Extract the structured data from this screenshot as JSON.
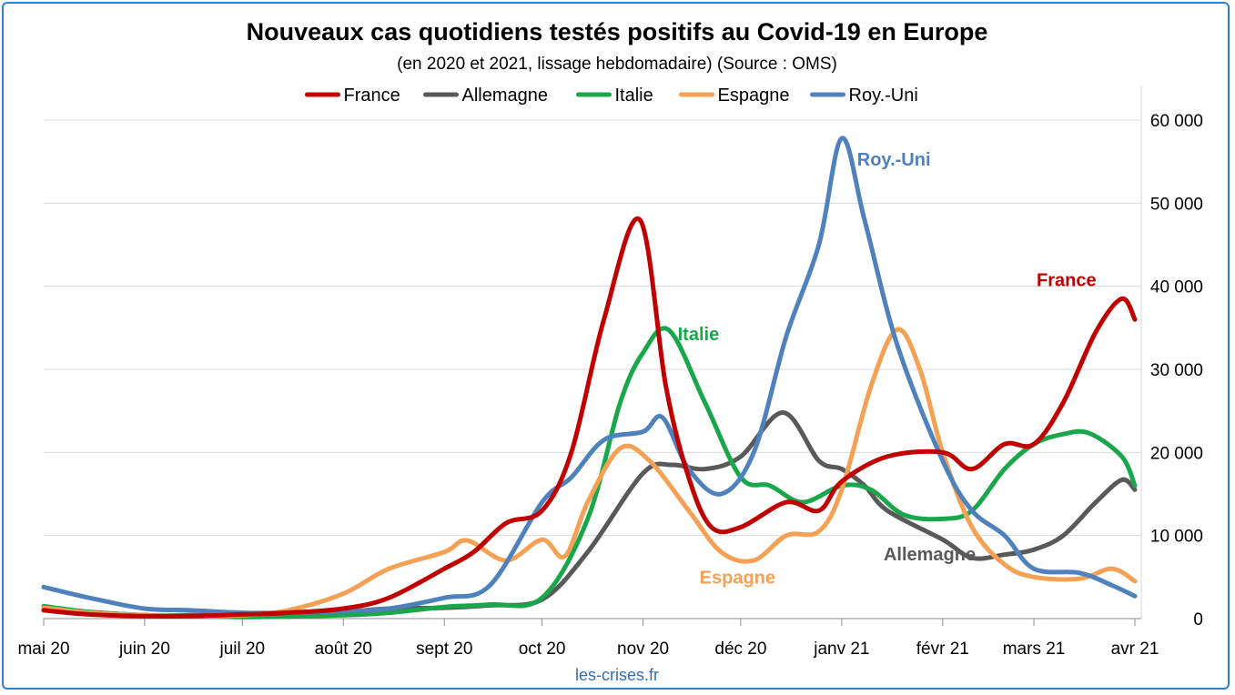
{
  "colors": {
    "France": "#c00000",
    "Allemagne": "#595959",
    "Italie": "#1aa64b",
    "Espagne": "#f4a055",
    "Roy.-Uni": "#4f81bd",
    "grid": "#d9d9d9",
    "frame": "#2f7dd6"
  },
  "source_note": "les-crises.fr",
  "chart_data": {
    "type": "line",
    "title": "Nouveaux cas quotidiens testés positifs au Covid-19 en Europe",
    "subtitle": "(en 2020 et 2021, lissage hebdomadaire) (Source : OMS)",
    "x_tick_labels": [
      "mai 20",
      "juin 20",
      "juil 20",
      "août 20",
      "sept 20",
      "oct 20",
      "nov 20",
      "déc 20",
      "janv 21",
      "févr 21",
      "mars 21",
      "avr 21"
    ],
    "x_tick_dates": [
      "2020-05-01",
      "2020-06-01",
      "2020-07-01",
      "2020-08-01",
      "2020-09-01",
      "2020-10-01",
      "2020-11-01",
      "2020-12-01",
      "2021-01-01",
      "2021-02-01",
      "2021-03-01",
      "2021-04-01"
    ],
    "x_range": [
      "2020-05-01",
      "2021-04-01"
    ],
    "y_tick_labels": [
      "0",
      "10 000",
      "20 000",
      "30 000",
      "40 000",
      "50 000",
      "60 000"
    ],
    "ylim": [
      0,
      60000
    ],
    "y_axis_side": "right",
    "grid": "horizontal",
    "legend_position": "top",
    "legend": [
      "France",
      "Allemagne",
      "Italie",
      "Espagne",
      "Roy.-Uni"
    ],
    "series": [
      {
        "name": "France",
        "points": [
          [
            "2020-05-01",
            1000
          ],
          [
            "2020-05-15",
            500
          ],
          [
            "2020-06-01",
            300
          ],
          [
            "2020-06-15",
            300
          ],
          [
            "2020-07-01",
            500
          ],
          [
            "2020-07-15",
            700
          ],
          [
            "2020-08-01",
            1200
          ],
          [
            "2020-08-15",
            2500
          ],
          [
            "2020-09-01",
            6000
          ],
          [
            "2020-09-10",
            8000
          ],
          [
            "2020-09-20",
            11500
          ],
          [
            "2020-10-01",
            13000
          ],
          [
            "2020-10-10",
            20000
          ],
          [
            "2020-10-20",
            36000
          ],
          [
            "2020-10-31",
            48000
          ],
          [
            "2020-11-08",
            28000
          ],
          [
            "2020-11-15",
            17000
          ],
          [
            "2020-11-22",
            11000
          ],
          [
            "2020-12-01",
            11000
          ],
          [
            "2020-12-15",
            14000
          ],
          [
            "2020-12-25",
            13000
          ],
          [
            "2021-01-01",
            16500
          ],
          [
            "2021-01-15",
            19500
          ],
          [
            "2021-02-01",
            20000
          ],
          [
            "2021-02-10",
            18000
          ],
          [
            "2021-02-20",
            21000
          ],
          [
            "2021-03-01",
            21000
          ],
          [
            "2021-03-10",
            26000
          ],
          [
            "2021-03-20",
            34500
          ],
          [
            "2021-03-28",
            38500
          ],
          [
            "2021-04-01",
            36000
          ]
        ]
      },
      {
        "name": "Allemagne",
        "points": [
          [
            "2020-05-01",
            1200
          ],
          [
            "2020-05-15",
            800
          ],
          [
            "2020-06-01",
            400
          ],
          [
            "2020-06-15",
            400
          ],
          [
            "2020-07-01",
            400
          ],
          [
            "2020-07-15",
            500
          ],
          [
            "2020-08-01",
            800
          ],
          [
            "2020-08-15",
            1200
          ],
          [
            "2020-09-01",
            1300
          ],
          [
            "2020-09-15",
            1600
          ],
          [
            "2020-10-01",
            2300
          ],
          [
            "2020-10-15",
            8000
          ],
          [
            "2020-11-01",
            17500
          ],
          [
            "2020-11-10",
            18500
          ],
          [
            "2020-11-20",
            18000
          ],
          [
            "2020-12-01",
            19500
          ],
          [
            "2020-12-14",
            24800
          ],
          [
            "2020-12-25",
            19000
          ],
          [
            "2021-01-01",
            18000
          ],
          [
            "2021-01-08",
            16000
          ],
          [
            "2021-01-15",
            13000
          ],
          [
            "2021-02-01",
            9500
          ],
          [
            "2021-02-10",
            7300
          ],
          [
            "2021-02-20",
            7700
          ],
          [
            "2021-03-01",
            8300
          ],
          [
            "2021-03-10",
            10000
          ],
          [
            "2021-03-20",
            14000
          ],
          [
            "2021-03-28",
            16700
          ],
          [
            "2021-04-01",
            15500
          ]
        ]
      },
      {
        "name": "Italie",
        "points": [
          [
            "2020-05-01",
            1500
          ],
          [
            "2020-05-15",
            800
          ],
          [
            "2020-06-01",
            400
          ],
          [
            "2020-06-15",
            300
          ],
          [
            "2020-07-01",
            200
          ],
          [
            "2020-07-15",
            250
          ],
          [
            "2020-08-01",
            400
          ],
          [
            "2020-08-15",
            700
          ],
          [
            "2020-09-01",
            1400
          ],
          [
            "2020-09-15",
            1700
          ],
          [
            "2020-10-01",
            2500
          ],
          [
            "2020-10-15",
            12000
          ],
          [
            "2020-10-25",
            26000
          ],
          [
            "2020-11-01",
            32000
          ],
          [
            "2020-11-09",
            34700
          ],
          [
            "2020-11-20",
            26000
          ],
          [
            "2020-12-01",
            17000
          ],
          [
            "2020-12-10",
            16000
          ],
          [
            "2020-12-20",
            14000
          ],
          [
            "2021-01-01",
            16000
          ],
          [
            "2021-01-10",
            15500
          ],
          [
            "2021-01-20",
            12500
          ],
          [
            "2021-02-01",
            12000
          ],
          [
            "2021-02-10",
            13000
          ],
          [
            "2021-02-20",
            18000
          ],
          [
            "2021-03-01",
            21000
          ],
          [
            "2021-03-10",
            22200
          ],
          [
            "2021-03-18",
            22300
          ],
          [
            "2021-03-28",
            19500
          ],
          [
            "2021-04-01",
            16000
          ]
        ]
      },
      {
        "name": "Espagne",
        "points": [
          [
            "2020-05-01",
            1300
          ],
          [
            "2020-05-15",
            700
          ],
          [
            "2020-06-01",
            400
          ],
          [
            "2020-06-15",
            300
          ],
          [
            "2020-07-01",
            400
          ],
          [
            "2020-07-15",
            1000
          ],
          [
            "2020-08-01",
            3000
          ],
          [
            "2020-08-15",
            6000
          ],
          [
            "2020-09-01",
            8000
          ],
          [
            "2020-09-08",
            9400
          ],
          [
            "2020-09-20",
            7000
          ],
          [
            "2020-10-01",
            9500
          ],
          [
            "2020-10-08",
            7500
          ],
          [
            "2020-10-15",
            14000
          ],
          [
            "2020-10-25",
            20500
          ],
          [
            "2020-11-03",
            19000
          ],
          [
            "2020-11-15",
            13000
          ],
          [
            "2020-11-25",
            8000
          ],
          [
            "2020-12-05",
            7000
          ],
          [
            "2020-12-15",
            10000
          ],
          [
            "2020-12-25",
            10500
          ],
          [
            "2021-01-01",
            15500
          ],
          [
            "2021-01-10",
            28000
          ],
          [
            "2021-01-18",
            34800
          ],
          [
            "2021-01-25",
            30000
          ],
          [
            "2021-02-01",
            20000
          ],
          [
            "2021-02-10",
            11000
          ],
          [
            "2021-02-20",
            6500
          ],
          [
            "2021-03-01",
            5000
          ],
          [
            "2021-03-15",
            4800
          ],
          [
            "2021-03-25",
            6000
          ],
          [
            "2021-04-01",
            4500
          ]
        ]
      },
      {
        "name": "Roy.-Uni",
        "points": [
          [
            "2020-05-01",
            3800
          ],
          [
            "2020-05-15",
            2500
          ],
          [
            "2020-06-01",
            1200
          ],
          [
            "2020-06-15",
            1000
          ],
          [
            "2020-07-01",
            700
          ],
          [
            "2020-07-15",
            700
          ],
          [
            "2020-08-01",
            900
          ],
          [
            "2020-08-15",
            1200
          ],
          [
            "2020-09-01",
            2500
          ],
          [
            "2020-09-15",
            4000
          ],
          [
            "2020-10-01",
            14000
          ],
          [
            "2020-10-10",
            17000
          ],
          [
            "2020-10-20",
            21500
          ],
          [
            "2020-11-01",
            22500
          ],
          [
            "2020-11-07",
            24200
          ],
          [
            "2020-11-15",
            18000
          ],
          [
            "2020-11-25",
            15000
          ],
          [
            "2020-12-05",
            20000
          ],
          [
            "2020-12-15",
            34000
          ],
          [
            "2020-12-25",
            45000
          ],
          [
            "2021-01-01",
            57800
          ],
          [
            "2021-01-08",
            48000
          ],
          [
            "2021-01-18",
            33000
          ],
          [
            "2021-02-01",
            19000
          ],
          [
            "2021-02-10",
            13000
          ],
          [
            "2021-02-20",
            10000
          ],
          [
            "2021-03-01",
            6000
          ],
          [
            "2021-03-15",
            5500
          ],
          [
            "2021-03-25",
            4000
          ],
          [
            "2021-04-01",
            2700
          ]
        ]
      }
    ],
    "annotations": [
      {
        "text": "France",
        "series": "France",
        "at": [
          "2021-03-11",
          40000
        ]
      },
      {
        "text": "Allemagne",
        "series": "Allemagne",
        "at": [
          "2021-01-28",
          7000
        ]
      },
      {
        "text": "Italie",
        "series": "Italie",
        "at": [
          "2020-11-18",
          33500
        ]
      },
      {
        "text": "Espagne",
        "series": "Espagne",
        "at": [
          "2020-11-30",
          4200
        ]
      },
      {
        "text": "Roy.-Uni",
        "series": "Roy.-Uni",
        "at": [
          "2021-01-17",
          54500
        ]
      }
    ]
  }
}
